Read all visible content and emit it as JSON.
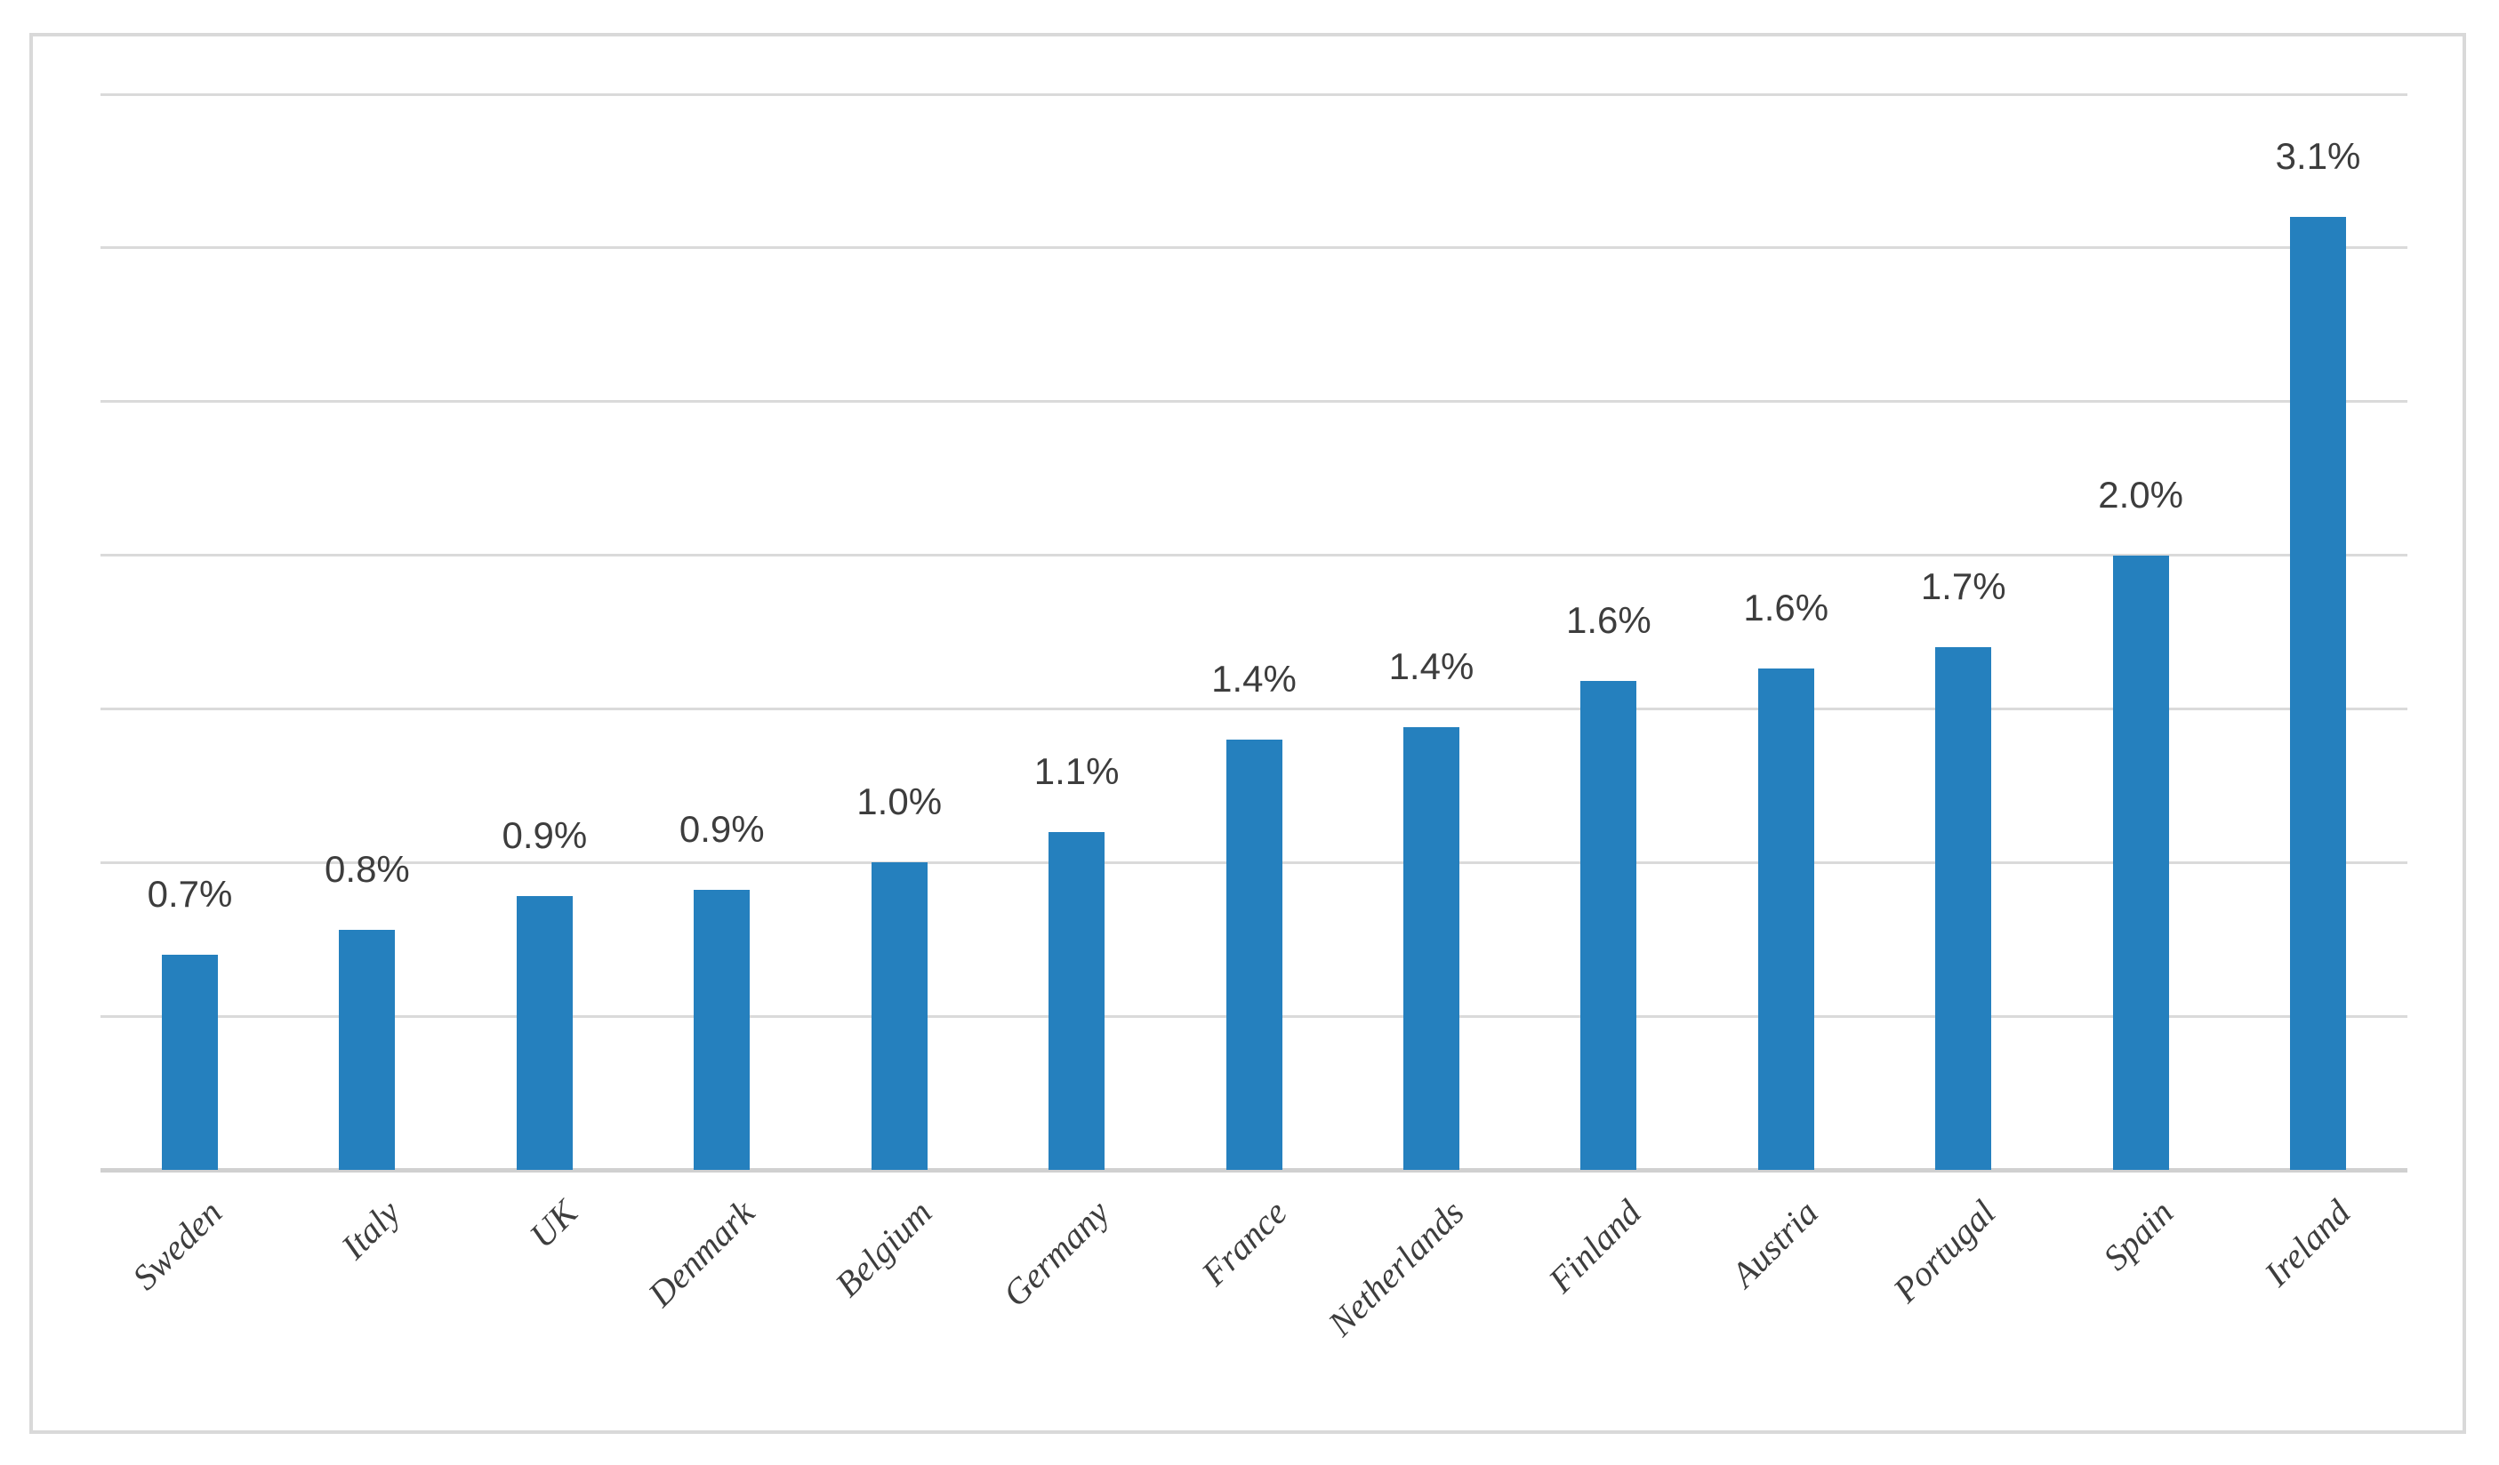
{
  "chart_data": {
    "type": "bar",
    "title": "",
    "xlabel": "",
    "ylabel": "",
    "categories": [
      "Sweden",
      "Italy",
      "UK",
      "Denmark",
      "Belgium",
      "Germany",
      "France",
      "Netherlands",
      "Finland",
      "Austria",
      "Portugal",
      "Spain",
      "Ireland"
    ],
    "values": [
      0.7,
      0.8,
      0.9,
      0.9,
      1.0,
      1.1,
      1.4,
      1.4,
      1.6,
      1.6,
      1.7,
      2.0,
      3.1
    ],
    "data_labels": [
      "0.7%",
      "0.8%",
      "0.9%",
      "0.9%",
      "1.0%",
      "1.1%",
      "1.4%",
      "1.4%",
      "1.6%",
      "1.6%",
      "1.7%",
      "2.0%",
      "3.1%"
    ],
    "bar_heights_precise_pct": [
      0.7,
      0.78,
      0.89,
      0.91,
      1.0,
      1.1,
      1.4,
      1.44,
      1.59,
      1.63,
      1.7,
      2.0,
      3.1
    ],
    "unit": "%",
    "ylim": [
      0,
      3.5
    ],
    "gridline_interval_pct": 0.5,
    "grid": true,
    "legend": "none",
    "y_axis_tick_labels": "none",
    "category_label_rotation_deg": -45,
    "colors": {
      "bar": "#2580BE",
      "gridline": "#DADADA",
      "axis_line": "#D0D0D0",
      "chart_border": "#D9D9D9",
      "text": "#3D3D3D",
      "background": "#FFFFFF"
    }
  }
}
